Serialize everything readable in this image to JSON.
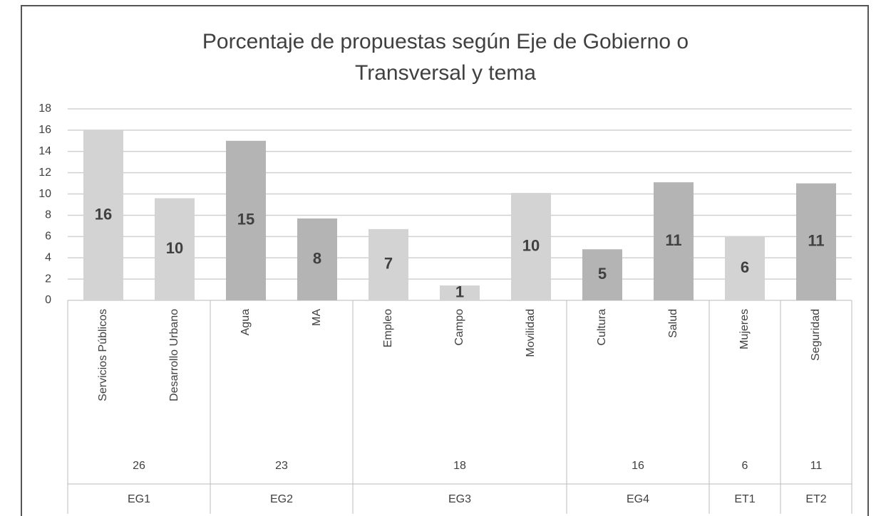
{
  "chart_data": {
    "type": "bar",
    "title": [
      "Porcentaje de propuestas según Eje de Gobierno o",
      "Transversal y tema"
    ],
    "groups": [
      {
        "name": "EG1",
        "total": 26,
        "color": "#d3d3d3",
        "categories": [
          "Servicios Públicos",
          "Desarrollo Urbano"
        ],
        "values": [
          16,
          9.6
        ],
        "value_labels": [
          "16",
          "10"
        ]
      },
      {
        "name": "EG2",
        "total": 23,
        "color": "#b4b4b4",
        "categories": [
          "Agua",
          "MA"
        ],
        "values": [
          15,
          7.7
        ],
        "value_labels": [
          "15",
          "8"
        ]
      },
      {
        "name": "EG3",
        "total": 18,
        "color": "#d3d3d3",
        "categories": [
          "Empleo",
          "Campo",
          "Movilidad"
        ],
        "values": [
          6.7,
          1.4,
          10.1
        ],
        "value_labels": [
          "7",
          "1",
          "10"
        ]
      },
      {
        "name": "EG4",
        "total": 16,
        "color": "#b4b4b4",
        "categories": [
          "Cultura",
          "Salud"
        ],
        "values": [
          4.8,
          11.1
        ],
        "value_labels": [
          "5",
          "11"
        ]
      },
      {
        "name": "ET1",
        "total": 6,
        "color": "#d3d3d3",
        "categories": [
          "Mujeres"
        ],
        "values": [
          6
        ],
        "value_labels": [
          "6"
        ]
      },
      {
        "name": "ET2",
        "total": 11,
        "color": "#b4b4b4",
        "categories": [
          "Seguridad"
        ],
        "values": [
          11
        ],
        "value_labels": [
          "11"
        ]
      }
    ],
    "ylim": [
      0,
      18
    ],
    "yticks": [
      0,
      2,
      4,
      6,
      8,
      10,
      12,
      14,
      16,
      18
    ],
    "grid": true
  }
}
